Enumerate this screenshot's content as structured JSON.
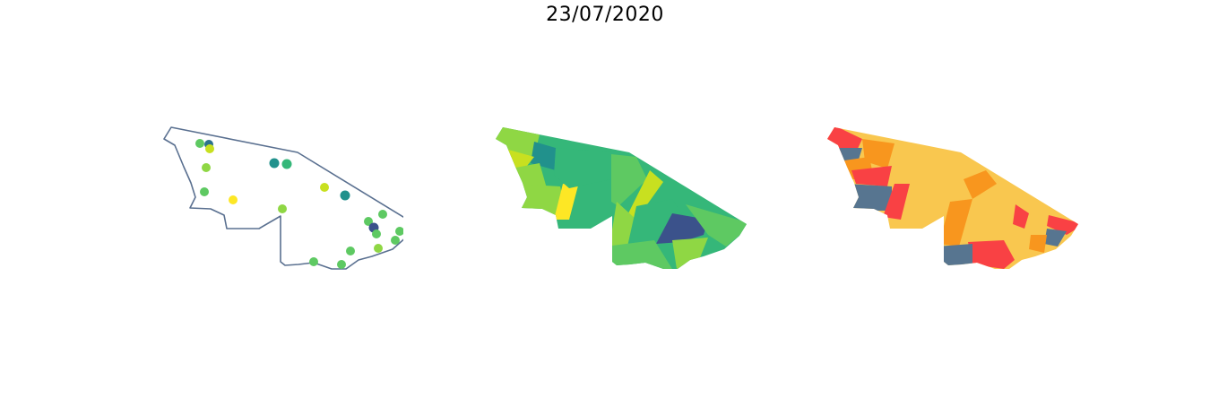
{
  "title": "23/07/2020",
  "colors": {
    "outline": "#5a7090",
    "viridis": [
      "#fde725",
      "#c8e020",
      "#8fd744",
      "#5ec962",
      "#35b779",
      "#21918c",
      "#2c728e",
      "#3b528b"
    ],
    "risk": {
      "high": "#f94144",
      "elevated": "#f8961e",
      "moderate": "#f9c74f",
      "low": "#577590"
    }
  },
  "panels": [
    {
      "name": "point-map",
      "kind": "points on state outline"
    },
    {
      "name": "choropleth-map-viridis",
      "kind": "choropleth"
    },
    {
      "name": "choropleth-map-risk",
      "kind": "choropleth"
    }
  ]
}
